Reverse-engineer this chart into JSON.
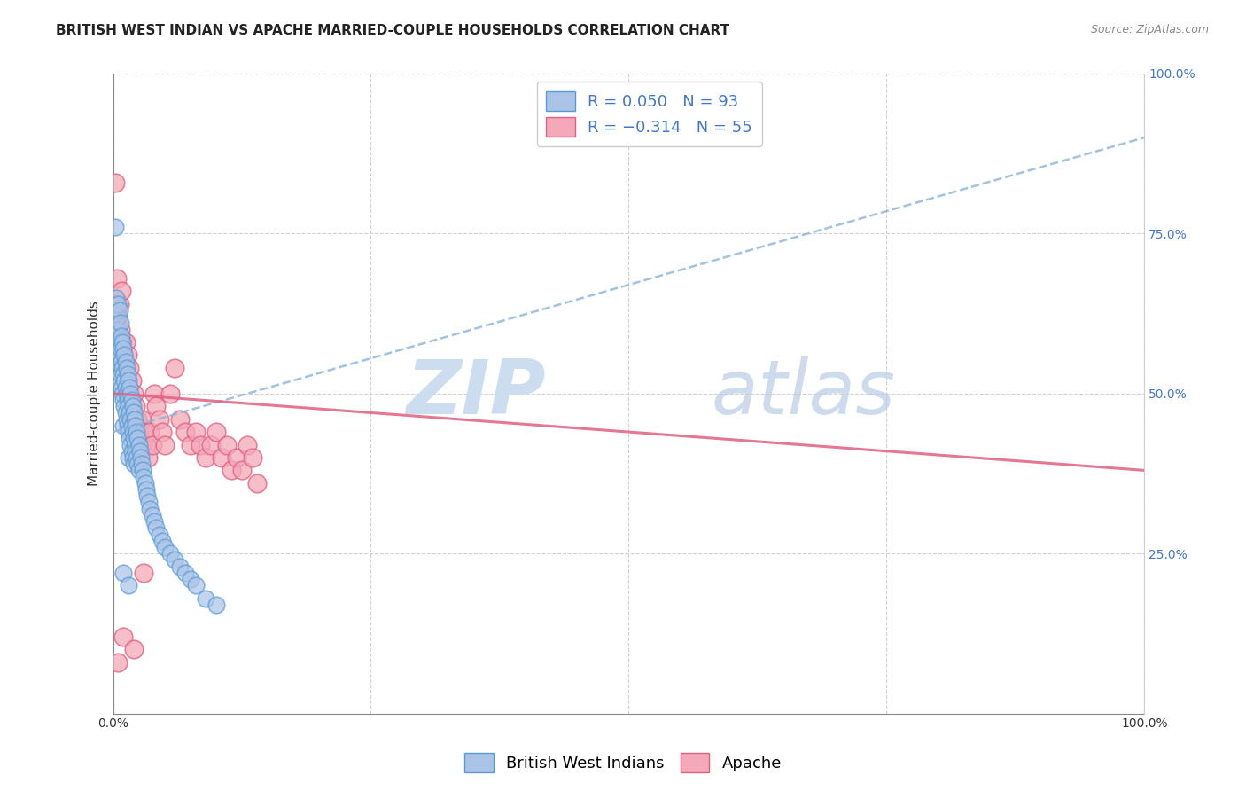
{
  "title": "BRITISH WEST INDIAN VS APACHE MARRIED-COUPLE HOUSEHOLDS CORRELATION CHART",
  "source": "Source: ZipAtlas.com",
  "ylabel": "Married-couple Households",
  "xlim": [
    0.0,
    1.0
  ],
  "ylim": [
    0.0,
    1.0
  ],
  "ytick_values": [
    0.0,
    0.25,
    0.5,
    0.75,
    1.0
  ],
  "xtick_values": [
    0.0,
    0.25,
    0.5,
    0.75,
    1.0
  ],
  "grid_color": "#cccccc",
  "background_color": "#ffffff",
  "series1_name": "British West Indians",
  "series1_R": 0.05,
  "series1_N": 93,
  "series1_color": "#aac4e8",
  "series1_edge_color": "#5b9bd5",
  "series1_line_color": "#8ab4d8",
  "series1_x": [
    0.002,
    0.003,
    0.003,
    0.004,
    0.004,
    0.004,
    0.005,
    0.005,
    0.005,
    0.005,
    0.006,
    0.006,
    0.006,
    0.007,
    0.007,
    0.007,
    0.008,
    0.008,
    0.008,
    0.009,
    0.009,
    0.009,
    0.01,
    0.01,
    0.01,
    0.01,
    0.011,
    0.011,
    0.011,
    0.012,
    0.012,
    0.012,
    0.013,
    0.013,
    0.013,
    0.014,
    0.014,
    0.014,
    0.015,
    0.015,
    0.015,
    0.015,
    0.016,
    0.016,
    0.016,
    0.017,
    0.017,
    0.017,
    0.018,
    0.018,
    0.018,
    0.019,
    0.019,
    0.019,
    0.02,
    0.02,
    0.02,
    0.021,
    0.021,
    0.022,
    0.022,
    0.023,
    0.023,
    0.024,
    0.024,
    0.025,
    0.025,
    0.026,
    0.027,
    0.028,
    0.029,
    0.03,
    0.031,
    0.032,
    0.033,
    0.035,
    0.036,
    0.038,
    0.04,
    0.042,
    0.045,
    0.048,
    0.05,
    0.055,
    0.06,
    0.065,
    0.07,
    0.075,
    0.08,
    0.09,
    0.1,
    0.01,
    0.015
  ],
  "series1_y": [
    0.76,
    0.65,
    0.6,
    0.62,
    0.58,
    0.55,
    0.64,
    0.6,
    0.56,
    0.52,
    0.63,
    0.58,
    0.54,
    0.61,
    0.57,
    0.53,
    0.59,
    0.55,
    0.51,
    0.58,
    0.54,
    0.5,
    0.57,
    0.53,
    0.49,
    0.45,
    0.56,
    0.52,
    0.48,
    0.55,
    0.51,
    0.47,
    0.54,
    0.5,
    0.46,
    0.53,
    0.49,
    0.45,
    0.52,
    0.48,
    0.44,
    0.4,
    0.51,
    0.47,
    0.43,
    0.5,
    0.46,
    0.42,
    0.49,
    0.45,
    0.41,
    0.48,
    0.44,
    0.4,
    0.47,
    0.43,
    0.39,
    0.46,
    0.42,
    0.45,
    0.41,
    0.44,
    0.4,
    0.43,
    0.39,
    0.42,
    0.38,
    0.41,
    0.4,
    0.39,
    0.38,
    0.37,
    0.36,
    0.35,
    0.34,
    0.33,
    0.32,
    0.31,
    0.3,
    0.29,
    0.28,
    0.27,
    0.26,
    0.25,
    0.24,
    0.23,
    0.22,
    0.21,
    0.2,
    0.18,
    0.17,
    0.22,
    0.2
  ],
  "series2_name": "Apache",
  "series2_R": -0.314,
  "series2_N": 55,
  "series2_color": "#f4a8b8",
  "series2_edge_color": "#e06080",
  "series2_line_color": "#e06080",
  "series2_x": [
    0.002,
    0.004,
    0.005,
    0.006,
    0.007,
    0.008,
    0.009,
    0.01,
    0.011,
    0.012,
    0.013,
    0.014,
    0.015,
    0.016,
    0.017,
    0.018,
    0.019,
    0.02,
    0.022,
    0.024,
    0.025,
    0.027,
    0.028,
    0.03,
    0.032,
    0.034,
    0.036,
    0.038,
    0.04,
    0.042,
    0.045,
    0.048,
    0.05,
    0.055,
    0.06,
    0.065,
    0.07,
    0.075,
    0.08,
    0.085,
    0.09,
    0.095,
    0.1,
    0.105,
    0.11,
    0.115,
    0.12,
    0.125,
    0.13,
    0.135,
    0.14,
    0.01,
    0.02,
    0.03,
    0.005
  ],
  "series2_y": [
    0.83,
    0.68,
    0.62,
    0.64,
    0.6,
    0.66,
    0.58,
    0.56,
    0.54,
    0.58,
    0.52,
    0.56,
    0.5,
    0.54,
    0.48,
    0.52,
    0.46,
    0.5,
    0.48,
    0.46,
    0.44,
    0.42,
    0.46,
    0.44,
    0.42,
    0.4,
    0.44,
    0.42,
    0.5,
    0.48,
    0.46,
    0.44,
    0.42,
    0.5,
    0.54,
    0.46,
    0.44,
    0.42,
    0.44,
    0.42,
    0.4,
    0.42,
    0.44,
    0.4,
    0.42,
    0.38,
    0.4,
    0.38,
    0.42,
    0.4,
    0.36,
    0.12,
    0.1,
    0.22,
    0.08
  ],
  "watermark_zip": "ZIP",
  "watermark_atlas": "atlas",
  "watermark_color": "#ccddf0",
  "title_fontsize": 11,
  "axis_label_fontsize": 11,
  "tick_fontsize": 10,
  "legend_fontsize": 13,
  "source_fontsize": 9,
  "line1_x0": 0.0,
  "line1_x1": 1.0,
  "line1_y0": 0.44,
  "line1_y1": 0.9,
  "line2_x0": 0.0,
  "line2_x1": 1.0,
  "line2_y0": 0.5,
  "line2_y1": 0.38
}
